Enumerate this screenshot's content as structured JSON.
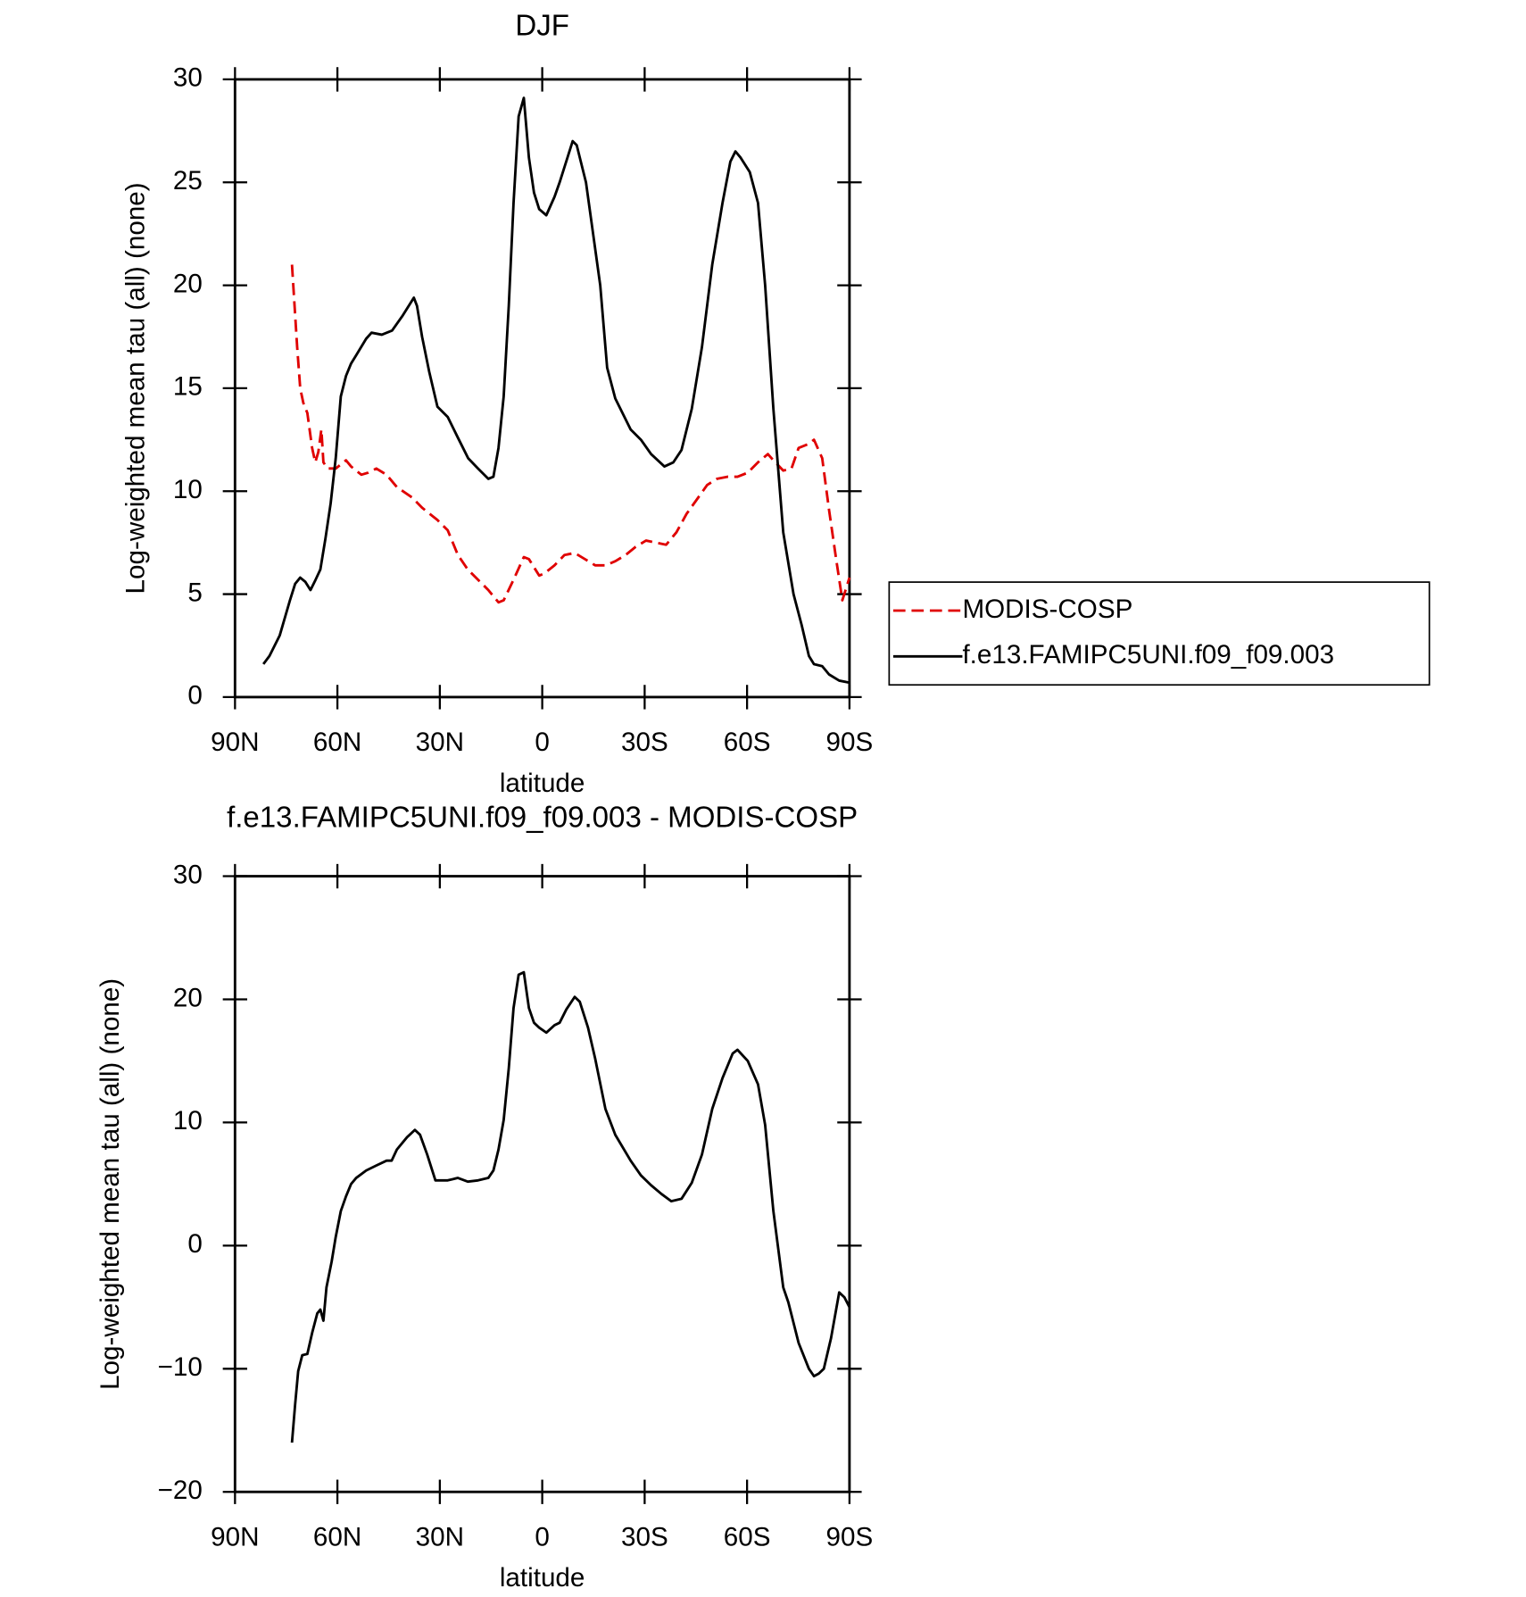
{
  "chart_data": [
    {
      "type": "line",
      "title": "DJF",
      "xlabel": "latitude",
      "ylabel": "Log-weighted mean tau (all) (none)",
      "xlim": [
        90,
        -90
      ],
      "xticks": [
        {
          "value": 90,
          "label": "90N"
        },
        {
          "value": 60,
          "label": "60N"
        },
        {
          "value": 30,
          "label": "30N"
        },
        0,
        {
          "value": -30,
          "label": "30S"
        },
        {
          "value": -60,
          "label": "60S"
        },
        {
          "value": -90,
          "label": "90S"
        }
      ],
      "ylim": [
        0,
        30
      ],
      "yticks": [
        0,
        5,
        10,
        15,
        20,
        25,
        30
      ],
      "legend": "right",
      "series": [
        {
          "name": "MODIS-COSP",
          "color": "#e00000",
          "linestyle": "dashed",
          "x": [
            73.3,
            71.8,
            70.9,
            70.0,
            68.8,
            67.4,
            66.5,
            65.6,
            64.7,
            64.1,
            62.9,
            60.5,
            57.5,
            56.0,
            53.0,
            51.0,
            48.6,
            45.6,
            42.6,
            38.2,
            35.2,
            30.7,
            27.7,
            24.7,
            21.8,
            18.8,
            15.8,
            12.8,
            11.3,
            8.4,
            5.4,
            3.9,
            0.9,
            -0.6,
            -3.6,
            -6.5,
            -9.5,
            -12.5,
            -15.5,
            -18.5,
            -21.4,
            -24.4,
            -27.4,
            -30.4,
            -33.4,
            -36.3,
            -39.3,
            -42.3,
            -45.3,
            -48.3,
            -51.2,
            -54.2,
            -57.2,
            -60.2,
            -63.2,
            -66.1,
            -67.7,
            -70.6,
            -73.0,
            -75.1,
            -78.1,
            -79.6,
            -82.0,
            -84.0,
            -86.1,
            -87.9,
            -90
          ],
          "values": [
            21,
            17,
            15,
            14.3,
            13.8,
            12.1,
            11.4,
            11.9,
            13,
            11.4,
            11.1,
            11.1,
            11.5,
            11.2,
            10.8,
            10.9,
            11.1,
            10.8,
            10.2,
            9.7,
            9.2,
            8.6,
            8.1,
            6.9,
            6.2,
            5.7,
            5.2,
            4.6,
            4.7,
            5.7,
            6.8,
            6.7,
            5.9,
            6.0,
            6.4,
            6.9,
            7.0,
            6.7,
            6.4,
            6.4,
            6.6,
            6.9,
            7.3,
            7.6,
            7.5,
            7.4,
            8.0,
            8.9,
            9.6,
            10.3,
            10.6,
            10.7,
            10.7,
            10.9,
            11.4,
            11.8,
            11.5,
            11.0,
            11.1,
            12.1,
            12.3,
            12.5,
            11.6,
            9.1,
            6.7,
            4.7,
            5.8
          ]
        },
        {
          "name": "f.e13.FAMIPC5UNI.f09_f09.003",
          "color": "#000000",
          "linestyle": "solid",
          "x": [
            81.7,
            79.9,
            76.9,
            73.9,
            72.4,
            70.9,
            69.4,
            67.9,
            66.4,
            65,
            63.5,
            62,
            60.5,
            59,
            57.5,
            56,
            54.5,
            51.6,
            50,
            47,
            44,
            41,
            37.6,
            36.7,
            35.2,
            33.1,
            30.7,
            27.7,
            24.7,
            21.7,
            18.8,
            15.8,
            14.3,
            12.8,
            11.3,
            9.8,
            8.4,
            6.9,
            5.4,
            3.9,
            2.4,
            0.9,
            -1.2,
            -3.6,
            -5.1,
            -8.9,
            -10.1,
            -12.8,
            -17,
            -19,
            -21.4,
            -25.9,
            -28.9,
            -31.9,
            -35.8,
            -38.4,
            -40.8,
            -43.8,
            -46.8,
            -49.8,
            -52.8,
            -55.1,
            -56.6,
            -58.1,
            -60.8,
            -63.2,
            -65.3,
            -67.7,
            -70.6,
            -73.6,
            -76,
            -78.1,
            -79.6,
            -82,
            -84,
            -87,
            -90
          ],
          "values": [
            1.6,
            2.0,
            3.0,
            4.7,
            5.5,
            5.8,
            5.6,
            5.2,
            5.7,
            6.2,
            7.7,
            9.4,
            11.6,
            14.6,
            15.6,
            16.2,
            16.6,
            17.4,
            17.7,
            17.6,
            17.8,
            18.5,
            19.4,
            19.0,
            17.5,
            15.8,
            14.1,
            13.6,
            12.6,
            11.6,
            11.1,
            10.6,
            10.7,
            12.1,
            14.6,
            19.0,
            24.0,
            28.2,
            29.1,
            26.2,
            24.5,
            23.7,
            23.4,
            24.3,
            25.0,
            27.0,
            26.8,
            25.0,
            20.0,
            16.0,
            14.5,
            13.0,
            12.5,
            11.8,
            11.2,
            11.4,
            12.0,
            14.0,
            17.0,
            21.0,
            24.0,
            26.0,
            26.5,
            26.2,
            25.5,
            24.0,
            20.0,
            14.0,
            8.0,
            5.0,
            3.5,
            2.0,
            1.6,
            1.5,
            1.1,
            0.8,
            0.7
          ]
        }
      ]
    },
    {
      "type": "line",
      "title": "f.e13.FAMIPC5UNI.f09_f09.003 - MODIS-COSP",
      "xlabel": "latitude",
      "ylabel": "Log-weighted mean tau (all) (none)",
      "xlim": [
        90,
        -90
      ],
      "xticks": [
        {
          "value": 90,
          "label": "90N"
        },
        {
          "value": 60,
          "label": "60N"
        },
        {
          "value": 30,
          "label": "30N"
        },
        0,
        {
          "value": -30,
          "label": "30S"
        },
        {
          "value": -60,
          "label": "60S"
        },
        {
          "value": -90,
          "label": "90S"
        }
      ],
      "ylim": [
        -20,
        30
      ],
      "yticks": [
        {
          "value": -20,
          "label": "−20"
        },
        {
          "value": -10,
          "label": "−10"
        },
        0,
        10,
        20,
        30
      ],
      "color": "#000000",
      "x": [
        73.3,
        72.4,
        71.5,
        70.3,
        68.8,
        67.4,
        65.9,
        65.0,
        64.1,
        63.2,
        61.7,
        60.5,
        59.0,
        57.5,
        56.0,
        54.5,
        51.6,
        48.6,
        45.6,
        44.1,
        42.6,
        39.6,
        37.3,
        35.8,
        33.7,
        31.3,
        27.7,
        24.7,
        21.8,
        18.8,
        15.8,
        14.3,
        12.8,
        11.3,
        9.8,
        8.4,
        6.9,
        5.4,
        3.9,
        2.4,
        0.9,
        -1.2,
        -3.6,
        -5.1,
        -7.1,
        -9.5,
        -11.0,
        -13.4,
        -15.5,
        -18.5,
        -21.4,
        -25.9,
        -28.9,
        -31.9,
        -34.9,
        -37.8,
        -40.8,
        -43.8,
        -46.8,
        -49.8,
        -52.8,
        -55.8,
        -57.2,
        -60.2,
        -63.2,
        -65.3,
        -67.7,
        -70.6,
        -72.1,
        -75.1,
        -78.1,
        -79.6,
        -81.0,
        -82.5,
        -84.6,
        -87.0,
        -88.5,
        -90
      ],
      "values": [
        -16,
        -12.9,
        -10.2,
        -8.9,
        -8.8,
        -7.1,
        -5.5,
        -5.2,
        -6.1,
        -3.4,
        -1.3,
        0.7,
        2.8,
        4.0,
        5.0,
        5.5,
        6.1,
        6.5,
        6.9,
        6.9,
        7.8,
        8.8,
        9.4,
        9.0,
        7.4,
        5.3,
        5.3,
        5.5,
        5.2,
        5.3,
        5.5,
        6.1,
        7.8,
        10.2,
        14.4,
        19.3,
        22.0,
        22.2,
        19.3,
        18.1,
        17.7,
        17.3,
        17.9,
        18.1,
        19.2,
        20.2,
        19.8,
        17.7,
        15.2,
        11.1,
        9.0,
        6.9,
        5.7,
        4.9,
        4.2,
        3.6,
        3.8,
        5.1,
        7.4,
        11.1,
        13.6,
        15.6,
        15.9,
        15.0,
        13.1,
        9.8,
        2.8,
        -3.4,
        -4.6,
        -7.9,
        -10.0,
        -10.6,
        -10.4,
        -10.0,
        -7.5,
        -3.8,
        -4.2,
        -5.0
      ]
    }
  ]
}
